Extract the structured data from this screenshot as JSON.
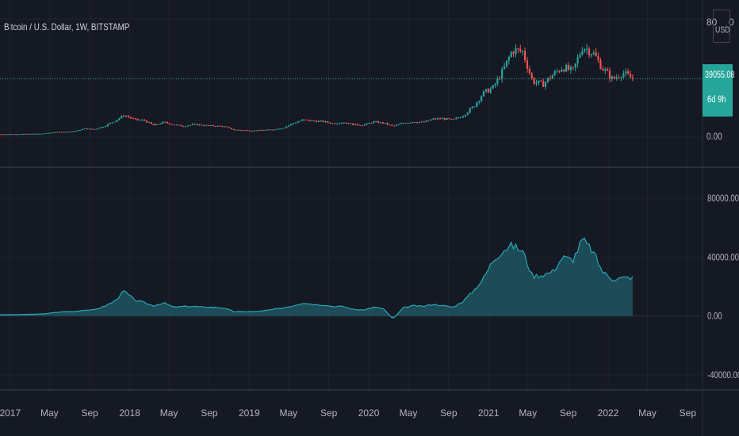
{
  "header": {
    "title": "Bitcoin / U.S. Dollar, 1W, BITSTAMP"
  },
  "price_axis": {
    "top_tick": "80",
    "top_tick_right": "0",
    "currency": "USD",
    "bottom_tick": "0.00",
    "last_price": "39055.08",
    "countdown": "6d 9h",
    "last_price_value": 39055.08
  },
  "osc_axis": {
    "ticks": [
      "80000.00",
      "40000.00",
      "0.00",
      "-40000.00"
    ]
  },
  "time_axis": {
    "labels": [
      "2017",
      "May",
      "Sep",
      "2018",
      "May",
      "Sep",
      "2019",
      "May",
      "Sep",
      "2020",
      "May",
      "Sep",
      "2021",
      "May",
      "Sep",
      "2022",
      "May",
      "Sep"
    ]
  },
  "colors": {
    "up": "#26a69a",
    "down": "#ef5350",
    "area_line": "#2aa6b5",
    "area_fill": "#1f5560",
    "price_line": "#26a69a"
  },
  "chart_data": [
    {
      "type": "candlestick",
      "title": "Bitcoin / U.S. Dollar, 1W, BITSTAMP",
      "x_unit": "date",
      "dates": [
        "2016-12",
        "2017-01",
        "2017-02",
        "2017-03",
        "2017-04",
        "2017-05",
        "2017-06",
        "2017-07",
        "2017-08",
        "2017-09",
        "2017-10",
        "2017-11",
        "2017-12",
        "2018-01",
        "2018-02",
        "2018-03",
        "2018-04",
        "2018-05",
        "2018-06",
        "2018-07",
        "2018-08",
        "2018-09",
        "2018-10",
        "2018-11",
        "2018-12",
        "2019-01",
        "2019-02",
        "2019-03",
        "2019-04",
        "2019-05",
        "2019-06",
        "2019-07",
        "2019-08",
        "2019-09",
        "2019-10",
        "2019-11",
        "2019-12",
        "2020-01",
        "2020-02",
        "2020-03",
        "2020-04",
        "2020-05",
        "2020-06",
        "2020-07",
        "2020-08",
        "2020-09",
        "2020-10",
        "2020-11",
        "2020-12",
        "2021-01",
        "2021-02",
        "2021-03",
        "2021-04",
        "2021-05",
        "2021-06",
        "2021-07",
        "2021-08",
        "2021-09",
        "2021-10",
        "2021-11",
        "2021-12",
        "2022-01",
        "2022-02",
        "2022-03"
      ],
      "close": [
        960,
        970,
        1100,
        1150,
        1350,
        2300,
        2500,
        2850,
        4700,
        4350,
        6400,
        9900,
        14000,
        11000,
        10400,
        7000,
        9200,
        7500,
        6400,
        7700,
        7000,
        6600,
        6300,
        4000,
        3700,
        3450,
        3800,
        4100,
        5300,
        8500,
        10800,
        10000,
        9600,
        8300,
        9200,
        7600,
        7200,
        9400,
        8600,
        6400,
        8600,
        9500,
        9150,
        11300,
        11600,
        10800,
        13800,
        19700,
        29000,
        33000,
        45000,
        58800,
        57700,
        37300,
        35000,
        41500,
        47100,
        43800,
        61300,
        57000,
        46300,
        38500,
        43200,
        39055
      ],
      "ylim": [
        0,
        80000
      ],
      "last_price": 39055.08
    },
    {
      "type": "area",
      "x_unit": "date",
      "dates": [
        "2016-12",
        "2017-01",
        "2017-02",
        "2017-03",
        "2017-04",
        "2017-05",
        "2017-06",
        "2017-07",
        "2017-08",
        "2017-09",
        "2017-10",
        "2017-11",
        "2017-12",
        "2018-01",
        "2018-02",
        "2018-03",
        "2018-04",
        "2018-05",
        "2018-06",
        "2018-07",
        "2018-08",
        "2018-09",
        "2018-10",
        "2018-11",
        "2018-12",
        "2019-01",
        "2019-02",
        "2019-03",
        "2019-04",
        "2019-05",
        "2019-06",
        "2019-07",
        "2019-08",
        "2019-09",
        "2019-10",
        "2019-11",
        "2019-12",
        "2020-01",
        "2020-02",
        "2020-03",
        "2020-04",
        "2020-05",
        "2020-06",
        "2020-07",
        "2020-08",
        "2020-09",
        "2020-10",
        "2020-11",
        "2020-12",
        "2021-01",
        "2021-02",
        "2021-03",
        "2021-04",
        "2021-05",
        "2021-06",
        "2021-07",
        "2021-08",
        "2021-09",
        "2021-10",
        "2021-11",
        "2021-12",
        "2022-01",
        "2022-02",
        "2022-03"
      ],
      "values": [
        900,
        950,
        1100,
        1200,
        1500,
        2300,
        3000,
        3000,
        4000,
        4200,
        6500,
        10000,
        17000,
        11000,
        9000,
        7000,
        9000,
        6000,
        6500,
        6500,
        6000,
        6000,
        5500,
        3000,
        3000,
        3000,
        3500,
        4500,
        5500,
        7000,
        9000,
        8000,
        7500,
        6500,
        6500,
        4500,
        4000,
        6000,
        5000,
        -2000,
        5500,
        7000,
        6500,
        8000,
        7000,
        6000,
        10000,
        17000,
        25000,
        38000,
        45000,
        48000,
        44000,
        27000,
        28000,
        30000,
        40000,
        38000,
        52000,
        44000,
        30000,
        25000,
        26000,
        26000
      ],
      "ylim": [
        -40000,
        80000
      ],
      "yticks": [
        80000,
        40000,
        0,
        -40000
      ]
    }
  ]
}
